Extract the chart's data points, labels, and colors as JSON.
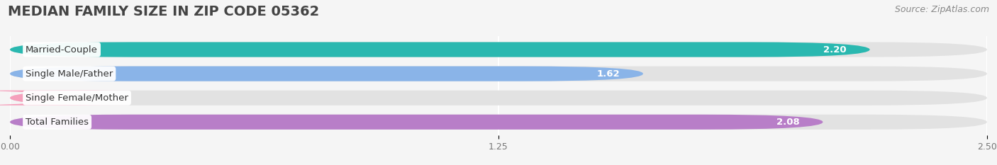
{
  "title": "MEDIAN FAMILY SIZE IN ZIP CODE 05362",
  "source": "Source: ZipAtlas.com",
  "categories": [
    "Married-Couple",
    "Single Male/Father",
    "Single Female/Mother",
    "Total Families"
  ],
  "values": [
    2.2,
    1.62,
    0.0,
    2.08
  ],
  "bar_colors": [
    "#2ab8b0",
    "#8ab4e8",
    "#f5a0bc",
    "#b87ec8"
  ],
  "background_color": "#f5f5f5",
  "bar_bg_color": "#e2e2e2",
  "xlim": [
    0,
    2.5
  ],
  "xticks": [
    0.0,
    1.25,
    2.5
  ],
  "xtick_labels": [
    "0.00",
    "1.25",
    "2.50"
  ],
  "title_fontsize": 14,
  "source_fontsize": 9,
  "bar_height": 0.62,
  "bar_gap": 0.38,
  "figsize": [
    14.06,
    2.33
  ],
  "dpi": 100,
  "value_color_inside": "#ffffff",
  "value_color_outside": "#666666",
  "label_fontsize": 9.5,
  "value_fontsize": 9.5
}
